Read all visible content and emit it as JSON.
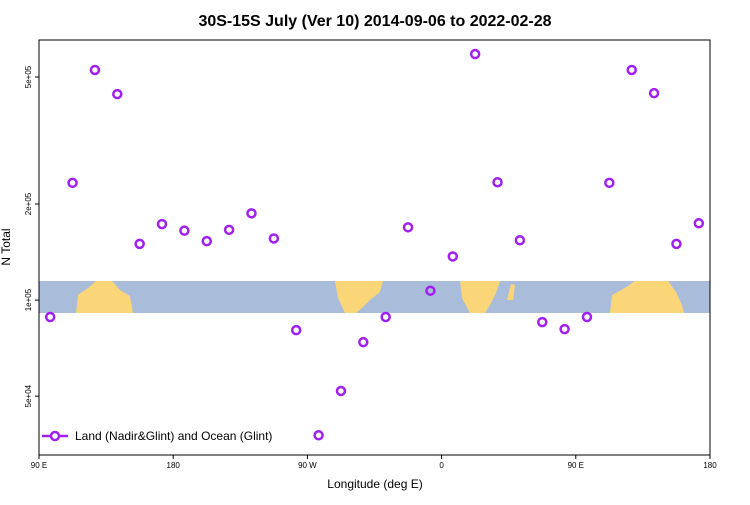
{
  "chart_data": {
    "type": "scatter",
    "title": "30S-15S July (Ver 10)   2014-09-06 to 2022-02-28",
    "x_label": "Longitude (deg E)",
    "y_label": "N Total",
    "log_y": true,
    "legend": "bottom-left",
    "xlim": [
      90,
      540
    ],
    "xticks": [
      {
        "value": 90,
        "label": "90 E"
      },
      {
        "value": 180,
        "label": "180"
      },
      {
        "value": 270,
        "label": "90 W"
      },
      {
        "value": 360,
        "label": "0"
      },
      {
        "value": 450,
        "label": "90 E"
      },
      {
        "value": 540,
        "label": "180"
      }
    ],
    "ylim": [
      32700,
      653000
    ],
    "yticks": [
      {
        "value": 50000,
        "label": "5e+04"
      },
      {
        "value": 100000,
        "label": "1e+05"
      },
      {
        "value": 200000,
        "label": "2e+05"
      },
      {
        "value": 500000,
        "label": "5e+05"
      }
    ],
    "series": [
      {
        "name": "Land (Nadir&Glint) and Ocean (Glint)",
        "color": "#a020f0",
        "x": [
          97.5,
          112.5,
          127.5,
          142.5,
          157.5,
          172.5,
          187.5,
          202.5,
          217.5,
          232.5,
          247.5,
          262.5,
          277.5,
          292.5,
          307.5,
          322.5,
          337.5,
          352.5,
          367.5,
          382.5,
          397.5,
          412.5,
          427.5,
          442.5,
          457.5,
          472.5,
          487.5,
          502.5,
          517.5,
          532.5
        ],
        "values": [
          88500,
          233000,
          526000,
          442000,
          150000,
          173000,
          165000,
          153000,
          166000,
          187000,
          156000,
          80500,
          37700,
          51900,
          73800,
          88500,
          169000,
          107000,
          137000,
          590000,
          234000,
          154000,
          85300,
          81100,
          88500,
          233000,
          526000,
          445000,
          150000,
          174000
        ]
      }
    ]
  }
}
